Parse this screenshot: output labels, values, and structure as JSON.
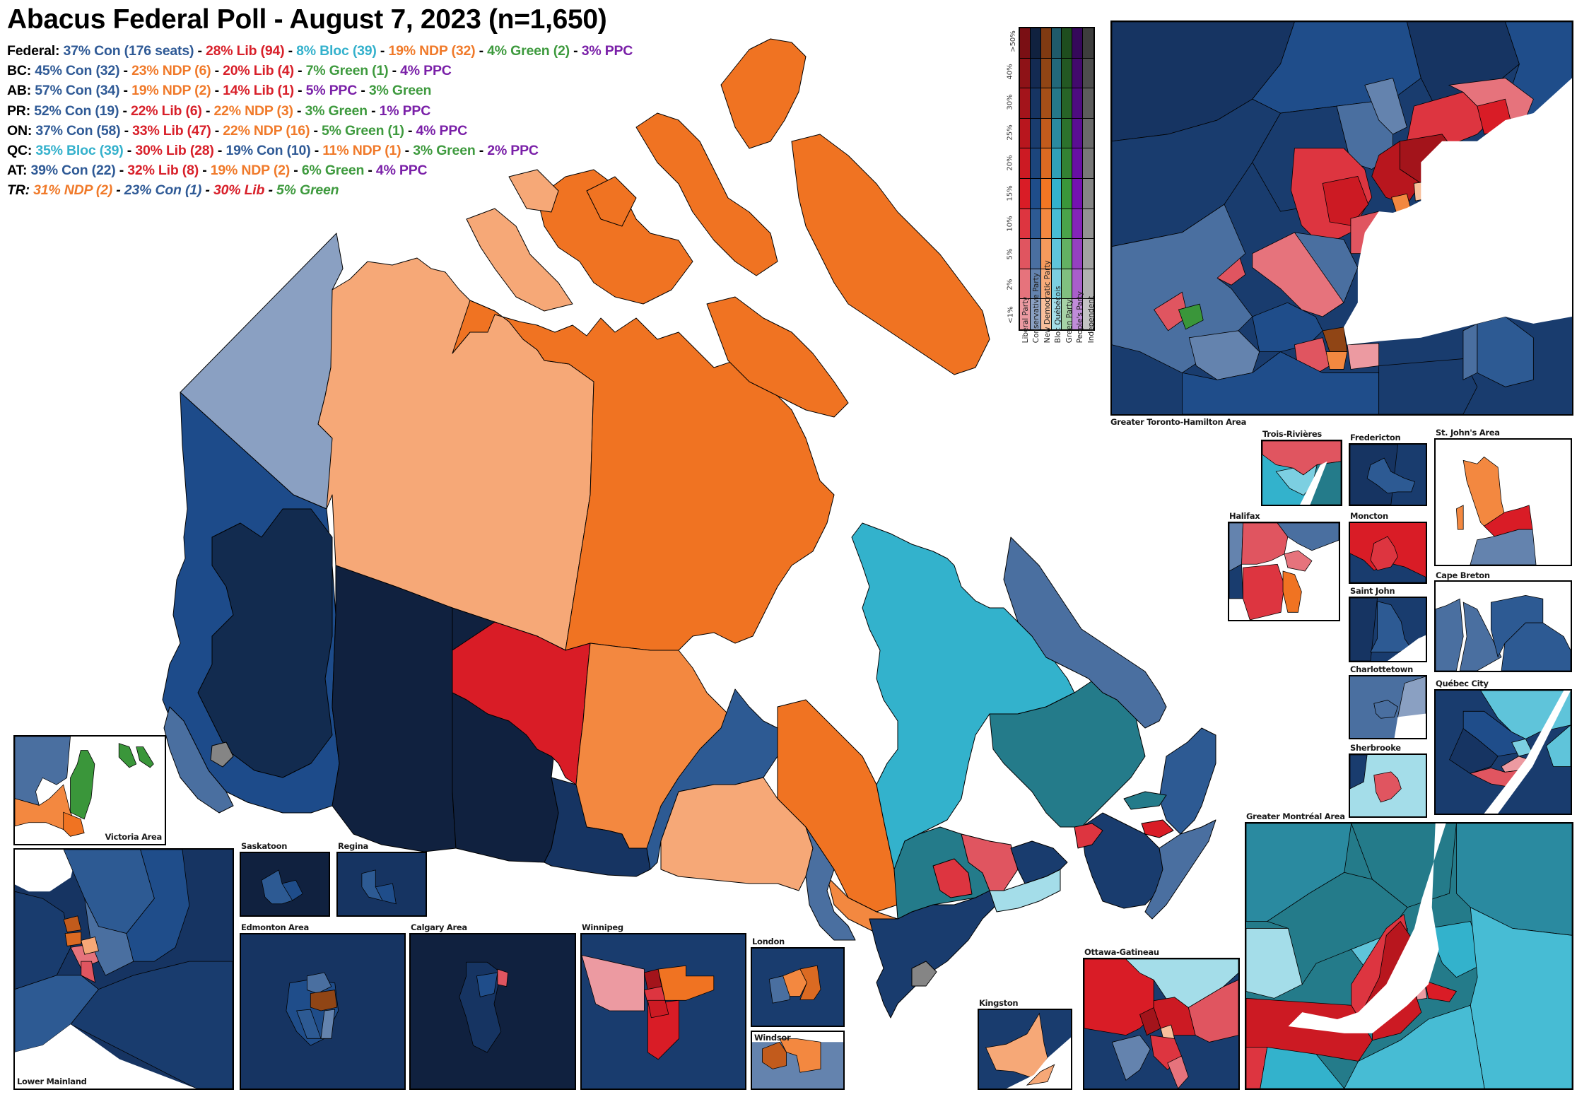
{
  "title": "Abacus Federal Poll - August 7, 2023 (n=1,650)",
  "colors": {
    "con": "#2f5a96",
    "lib": "#d8202a",
    "bloc": "#34b1cc",
    "ndp": "#f07a2a",
    "green": "#3e9a3e",
    "ppc": "#7a20a8",
    "text": "#000000"
  },
  "summary_lines": [
    {
      "region": "Federal:",
      "italic": false,
      "segments": [
        {
          "text": "37% Con (176 seats)",
          "party": "con"
        },
        {
          "text": "28% Lib (94)",
          "party": "lib"
        },
        {
          "text": "8% Bloc (39)",
          "party": "bloc"
        },
        {
          "text": "19% NDP (32)",
          "party": "ndp"
        },
        {
          "text": "4% Green (2)",
          "party": "green"
        },
        {
          "text": "3% PPC",
          "party": "ppc"
        }
      ]
    },
    {
      "region": "BC:",
      "italic": false,
      "segments": [
        {
          "text": "45% Con (32)",
          "party": "con"
        },
        {
          "text": "23% NDP (6)",
          "party": "ndp"
        },
        {
          "text": "20% Lib (4)",
          "party": "lib"
        },
        {
          "text": "7% Green (1)",
          "party": "green"
        },
        {
          "text": "4% PPC",
          "party": "ppc"
        }
      ]
    },
    {
      "region": "AB:",
      "italic": false,
      "segments": [
        {
          "text": "57% Con (34)",
          "party": "con"
        },
        {
          "text": "19% NDP (2)",
          "party": "ndp"
        },
        {
          "text": "14% Lib (1)",
          "party": "lib"
        },
        {
          "text": "5% PPC",
          "party": "ppc"
        },
        {
          "text": "3% Green",
          "party": "green"
        }
      ]
    },
    {
      "region": "PR:",
      "italic": false,
      "segments": [
        {
          "text": "52% Con (19)",
          "party": "con"
        },
        {
          "text": "22% Lib (6)",
          "party": "lib"
        },
        {
          "text": "22% NDP (3)",
          "party": "ndp"
        },
        {
          "text": "3% Green",
          "party": "green"
        },
        {
          "text": "1% PPC",
          "party": "ppc"
        }
      ]
    },
    {
      "region": "ON:",
      "italic": false,
      "segments": [
        {
          "text": "37% Con (58)",
          "party": "con"
        },
        {
          "text": "33% Lib (47)",
          "party": "lib"
        },
        {
          "text": "22% NDP (16)",
          "party": "ndp"
        },
        {
          "text": "5% Green (1)",
          "party": "green"
        },
        {
          "text": "4% PPC",
          "party": "ppc"
        }
      ]
    },
    {
      "region": "QC:",
      "italic": false,
      "segments": [
        {
          "text": "35% Bloc (39)",
          "party": "bloc"
        },
        {
          "text": "30% Lib (28)",
          "party": "lib"
        },
        {
          "text": "19% Con (10)",
          "party": "con"
        },
        {
          "text": "11% NDP (1)",
          "party": "ndp"
        },
        {
          "text": "3% Green",
          "party": "green"
        },
        {
          "text": "2% PPC",
          "party": "ppc"
        }
      ]
    },
    {
      "region": "AT:",
      "italic": false,
      "segments": [
        {
          "text": "39% Con (22)",
          "party": "con"
        },
        {
          "text": "32% Lib (8)",
          "party": "lib"
        },
        {
          "text": "19% NDP (2)",
          "party": "ndp"
        },
        {
          "text": "6% Green",
          "party": "green"
        },
        {
          "text": "4% PPC",
          "party": "ppc"
        }
      ]
    },
    {
      "region": "TR:",
      "italic": true,
      "segments": [
        {
          "text": "31% NDP (2)",
          "party": "ndp"
        },
        {
          "text": "23% Con (1)",
          "party": "con"
        },
        {
          "text": "30% Lib",
          "party": "lib"
        },
        {
          "text": "5% Green",
          "party": "green"
        }
      ]
    }
  ],
  "separator": " - ",
  "legend": {
    "tick_labels": [
      ">50%",
      "40%",
      "30%",
      "25%",
      "20%",
      "15%",
      "10%",
      "5%",
      "2%",
      "<1%"
    ],
    "parties": [
      "Liberal Party",
      "Conservative Party",
      "New Democratic Party",
      "Bloc Québécois",
      "Green Party",
      "People's Party",
      "Independent"
    ],
    "palette": [
      [
        "#7a0f14",
        "#10213f",
        "#7f3a12",
        "#1f5a6a",
        "#1e4d1e",
        "#35085a",
        "#3d3d3d"
      ],
      [
        "#8e1217",
        "#132a52",
        "#904515",
        "#22687a",
        "#235823",
        "#420a6c",
        "#4d4d4d"
      ],
      [
        "#a3141b",
        "#163462",
        "#a54f18",
        "#257889",
        "#276427",
        "#4d0c7f",
        "#5c5c5c"
      ],
      [
        "#b8161e",
        "#193c6e",
        "#c25b1c",
        "#2a8aa0",
        "#2c722c",
        "#5a0e92",
        "#6a6a6a"
      ],
      [
        "#cc1a23",
        "#1c457c",
        "#db6a22",
        "#2fa0b8",
        "#338233",
        "#670fa4",
        "#787878"
      ],
      [
        "#d91c26",
        "#1f4d8a",
        "#f27623",
        "#33b2cc",
        "#3a963a",
        "#7411b0",
        "#858585"
      ],
      [
        "#dd3540",
        "#2d5a93",
        "#f38840",
        "#47bcd4",
        "#4aa34a",
        "#8424b8",
        "#939393"
      ],
      [
        "#e05560",
        "#4a6fa0",
        "#f59a5c",
        "#5fc4da",
        "#63b163",
        "#9540c0",
        "#a2a2a2"
      ],
      [
        "#e6737c",
        "#6483ae",
        "#f7ab7a",
        "#7ccfe1",
        "#80c080",
        "#a85ecb",
        "#b1b1b1"
      ],
      [
        "#ec9aa1",
        "#8aa0c2",
        "#f9c09c",
        "#a4dde9",
        "#a6d2a6",
        "#c08cd9",
        "#c4c4c4"
      ]
    ]
  },
  "insets": [
    {
      "id": "gta",
      "label": "Greater Toronto-Hamilton Area"
    },
    {
      "id": "trois-rivieres",
      "label": "Trois-Rivières"
    },
    {
      "id": "fredericton",
      "label": "Fredericton"
    },
    {
      "id": "st-johns",
      "label": "St. John's Area"
    },
    {
      "id": "halifax",
      "label": "Halifax"
    },
    {
      "id": "moncton",
      "label": "Moncton"
    },
    {
      "id": "saint-john",
      "label": "Saint John"
    },
    {
      "id": "cape-breton",
      "label": "Cape Breton"
    },
    {
      "id": "charlottetown",
      "label": "Charlottetown"
    },
    {
      "id": "quebec-city",
      "label": "Québec City"
    },
    {
      "id": "sherbrooke",
      "label": "Sherbrooke"
    },
    {
      "id": "montreal",
      "label": "Greater Montréal Area"
    },
    {
      "id": "ottawa-gatineau",
      "label": "Ottawa-Gatineau"
    },
    {
      "id": "kingston",
      "label": "Kingston"
    },
    {
      "id": "london",
      "label": "London"
    },
    {
      "id": "windsor",
      "label": "Windsor"
    },
    {
      "id": "winnipeg",
      "label": "Winnipeg"
    },
    {
      "id": "calgary",
      "label": "Calgary Area"
    },
    {
      "id": "edmonton",
      "label": "Edmonton Area"
    },
    {
      "id": "saskatoon",
      "label": "Saskatoon"
    },
    {
      "id": "regina",
      "label": "Regina"
    },
    {
      "id": "lower-mainland",
      "label": "Lower Mainland"
    },
    {
      "id": "victoria",
      "label": "Victoria Area"
    }
  ]
}
